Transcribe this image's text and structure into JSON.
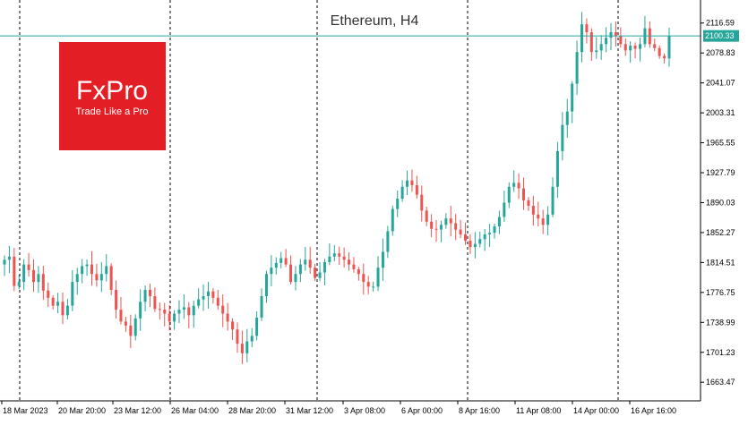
{
  "chart_data": {
    "type": "candlestick",
    "title": "Ethereum, H4",
    "price_axis": {
      "ticks": [
        "2116.59",
        "2078.83",
        "2041.07",
        "2003.31",
        "1965.55",
        "1927.79",
        "1890.03",
        "1852.27",
        "1814.51",
        "1776.75",
        "1738.99",
        "1701.23",
        "1663.47"
      ],
      "ylim": [
        1640,
        2140
      ]
    },
    "time_axis": {
      "ticks": [
        "18 Mar 2023",
        "20 Mar 20:00",
        "23 Mar 12:00",
        "26 Mar 04:00",
        "28 Mar 20:00",
        "31 Mar 12:00",
        "3 Apr 08:00",
        "6 Apr 00:00",
        "8 Apr 16:00",
        "11 Apr 08:00",
        "14 Apr 00:00",
        "16 Apr 16:00"
      ],
      "separators": [
        "26 Mar 04:00",
        "31 Mar 12:00",
        "8 Apr 16:00",
        "14 Apr 00:00"
      ]
    },
    "current_price": 2100.33,
    "closes": [
      1818,
      1822,
      1785,
      1790,
      1812,
      1805,
      1790,
      1800,
      1779,
      1770,
      1760,
      1765,
      1748,
      1760,
      1790,
      1800,
      1810,
      1812,
      1800,
      1792,
      1800,
      1810,
      1780,
      1755,
      1740,
      1735,
      1722,
      1744,
      1765,
      1780,
      1772,
      1756,
      1755,
      1750,
      1740,
      1750,
      1755,
      1758,
      1748,
      1760,
      1768,
      1772,
      1778,
      1770,
      1760,
      1750,
      1740,
      1730,
      1712,
      1700,
      1715,
      1722,
      1745,
      1772,
      1800,
      1808,
      1814,
      1820,
      1812,
      1790,
      1800,
      1812,
      1818,
      1808,
      1795,
      1802,
      1815,
      1822,
      1826,
      1822,
      1818,
      1812,
      1806,
      1800,
      1790,
      1784,
      1784,
      1808,
      1828,
      1854,
      1882,
      1895,
      1910,
      1918,
      1912,
      1900,
      1880,
      1866,
      1857,
      1856,
      1862,
      1870,
      1864,
      1856,
      1850,
      1842,
      1834,
      1838,
      1844,
      1850,
      1852,
      1860,
      1872,
      1890,
      1910,
      1915,
      1908,
      1893,
      1886,
      1875,
      1870,
      1862,
      1875,
      1910,
      1955,
      1988,
      2005,
      2040,
      2080,
      2115,
      2105,
      2080,
      2082,
      2090,
      2098,
      2105,
      2100,
      2090,
      2082,
      2088,
      2084,
      2090,
      2110,
      2090,
      2085,
      2075,
      2072,
      2100
    ],
    "colors": {
      "bull": "#26a69a",
      "bear": "#ef5350",
      "price_line": "#26a69a",
      "grid_separator": "#000000"
    }
  },
  "logo": {
    "brand": "FxPro",
    "tagline": "Trade Like a Pro",
    "color": "#e31e24"
  }
}
